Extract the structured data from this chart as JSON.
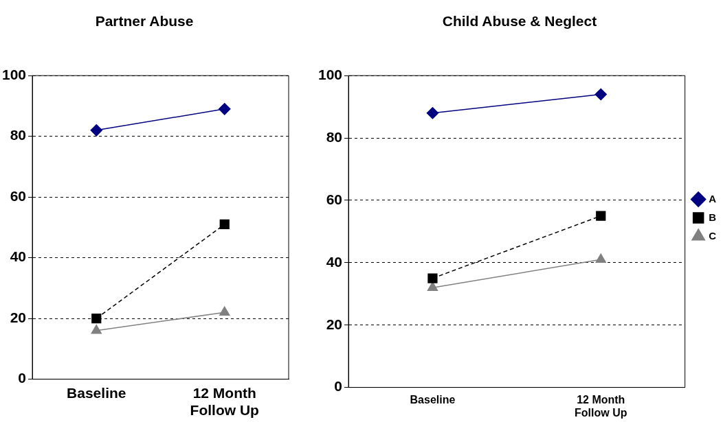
{
  "chart_data": [
    {
      "type": "line",
      "title": "Partner Abuse",
      "categories": [
        "Baseline",
        "12 Month Follow Up"
      ],
      "ylim": [
        0,
        100
      ],
      "yticks": [
        0,
        20,
        40,
        60,
        80,
        100
      ],
      "grid": "y",
      "legend": false,
      "series": [
        {
          "color": "#000080",
          "values": [
            82,
            89
          ],
          "marker": "diamond",
          "line_style": "solid"
        },
        {
          "color": "#000000",
          "values": [
            20,
            51
          ],
          "marker": "square",
          "line_style": "dashed"
        },
        {
          "color": "#808080",
          "values": [
            16,
            22
          ],
          "marker": "triangle",
          "line_style": "solid"
        }
      ]
    },
    {
      "type": "line",
      "title": "Child Abuse & Neglect",
      "categories": [
        "Baseline",
        "12 Month Follow Up"
      ],
      "ylim": [
        0,
        100
      ],
      "yticks": [
        0,
        20,
        40,
        60,
        80,
        100
      ],
      "grid": "y",
      "legend": "right",
      "series": [
        {
          "name": "A",
          "color": "#000080",
          "values": [
            88,
            94
          ],
          "marker": "diamond",
          "line_style": "solid"
        },
        {
          "name": "B",
          "color": "#000000",
          "values": [
            35,
            55
          ],
          "marker": "square",
          "line_style": "dashed"
        },
        {
          "name": "C",
          "color": "#808080",
          "values": [
            32,
            41
          ],
          "marker": "triangle",
          "line_style": "solid"
        }
      ]
    }
  ]
}
